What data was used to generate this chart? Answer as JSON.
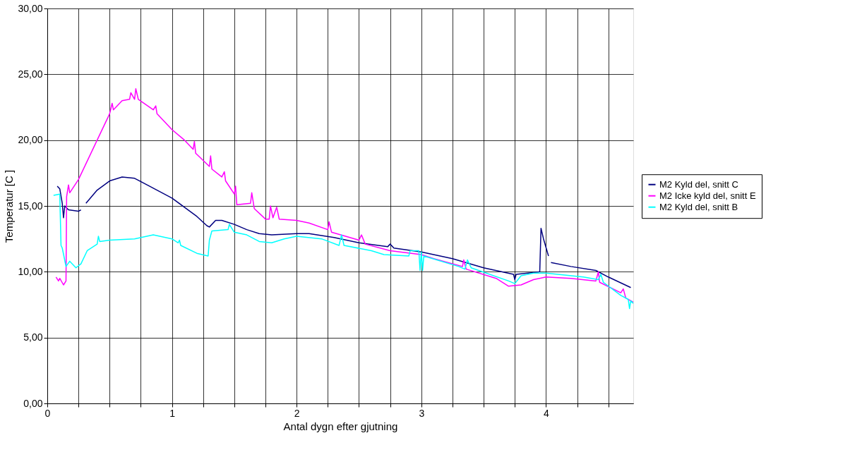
{
  "chart_data": {
    "type": "line",
    "xlabel": "Antal dygn efter gjutning",
    "ylabel": "Temperatur [C ]",
    "xlim": [
      0,
      4.7
    ],
    "ylim": [
      0,
      30
    ],
    "xticks": [
      0,
      {
        "value": 0.25,
        "label": null
      },
      {
        "value": 0.5,
        "label": null
      },
      {
        "value": 0.75,
        "label": null
      },
      1,
      {
        "value": 1.25,
        "label": null
      },
      {
        "value": 1.5,
        "label": null
      },
      {
        "value": 1.75,
        "label": null
      },
      2,
      {
        "value": 2.25,
        "label": null
      },
      {
        "value": 2.5,
        "label": null
      },
      {
        "value": 2.75,
        "label": null
      },
      3,
      {
        "value": 3.25,
        "label": null
      },
      {
        "value": 3.5,
        "label": null
      },
      {
        "value": 3.75,
        "label": null
      },
      4,
      {
        "value": 4.25,
        "label": null
      },
      {
        "value": 4.5,
        "label": null
      }
    ],
    "yticks": [
      {
        "value": 0,
        "label": "0,00"
      },
      {
        "value": 5,
        "label": "5,00"
      },
      {
        "value": 10,
        "label": "10,00"
      },
      {
        "value": 15,
        "label": "15,00"
      },
      {
        "value": 20,
        "label": "20,00"
      },
      {
        "value": 25,
        "label": "25,00"
      },
      {
        "value": 30,
        "label": "30,00"
      }
    ],
    "grid": true,
    "legend": "right",
    "marker": "none",
    "line_style": "solid",
    "series": [
      {
        "name": "M2 Kyld del, snitt C",
        "color": "#000080",
        "x": [
          0.08,
          0.1,
          0.12,
          0.13,
          0.14,
          0.17,
          0.25,
          0.27,
          0.29,
          0.31,
          0.4,
          0.5,
          0.6,
          0.7,
          0.8,
          1.0,
          1.1,
          1.2,
          1.28,
          1.3,
          1.35,
          1.4,
          1.5,
          1.6,
          1.7,
          1.8,
          2.0,
          2.1,
          2.3,
          2.5,
          2.73,
          2.75,
          2.78,
          3.0,
          3.25,
          3.5,
          3.74,
          3.75,
          3.76,
          3.95,
          3.96,
          3.98,
          4.02,
          4.03,
          4.04,
          4.2,
          4.4,
          4.5,
          4.68
        ],
        "values": [
          16.5,
          16.3,
          15.2,
          14.1,
          15.0,
          14.7,
          14.6,
          14.7,
          null,
          15.2,
          16.2,
          16.9,
          17.2,
          17.1,
          16.6,
          15.6,
          14.9,
          14.2,
          13.5,
          13.4,
          13.9,
          13.9,
          13.6,
          13.2,
          12.9,
          12.8,
          12.9,
          12.9,
          12.6,
          12.2,
          11.9,
          12.1,
          11.8,
          11.5,
          11.0,
          10.3,
          9.8,
          9.4,
          9.8,
          10.0,
          13.3,
          12.5,
          11.2,
          null,
          10.7,
          10.4,
          10.1,
          9.6,
          8.8
        ]
      },
      {
        "name": "M2 Icke kyld del, snitt E",
        "color": "#ff00ff",
        "x": [
          0.07,
          0.09,
          0.1,
          0.13,
          0.15,
          0.155,
          0.17,
          0.18,
          0.25,
          0.4,
          0.5,
          0.52,
          0.53,
          0.6,
          0.66,
          0.67,
          0.7,
          0.71,
          0.73,
          0.85,
          0.87,
          0.88,
          1.0,
          1.1,
          1.17,
          1.18,
          1.19,
          1.3,
          1.31,
          1.32,
          1.4,
          1.42,
          1.43,
          1.5,
          1.51,
          1.52,
          1.63,
          1.64,
          1.66,
          1.75,
          1.78,
          1.79,
          1.81,
          1.84,
          1.86,
          2.0,
          2.1,
          2.25,
          2.26,
          2.28,
          2.5,
          2.52,
          2.55,
          2.75,
          3.0,
          3.1,
          3.33,
          3.34,
          3.36,
          3.6,
          3.7,
          3.8,
          3.9,
          4.0,
          4.2,
          4.4,
          4.42,
          4.43,
          4.6,
          4.62,
          4.64,
          4.7
        ],
        "values": [
          9.6,
          9.3,
          9.5,
          9.0,
          9.3,
          15.7,
          16.6,
          16.0,
          17.0,
          20.0,
          22.0,
          22.8,
          22.3,
          23.0,
          23.1,
          23.6,
          23.1,
          23.9,
          23.1,
          22.3,
          22.6,
          22.0,
          20.8,
          20.0,
          19.3,
          19.9,
          19.0,
          18.0,
          18.8,
          17.8,
          17.2,
          17.6,
          16.9,
          15.9,
          16.5,
          15.1,
          15.2,
          16.0,
          14.8,
          14.0,
          14.0,
          15.0,
          14.1,
          14.9,
          14.0,
          13.9,
          13.7,
          13.2,
          13.8,
          13.0,
          12.4,
          12.8,
          12.1,
          11.6,
          11.3,
          11.0,
          10.4,
          10.9,
          10.2,
          9.5,
          8.9,
          9.0,
          9.4,
          9.6,
          9.5,
          9.3,
          10.0,
          9.2,
          8.4,
          8.7,
          8.0,
          7.7
        ]
      },
      {
        "name": "M2 Kyld del, snitt B",
        "color": "#00ffff",
        "x": [
          0.05,
          0.1,
          0.11,
          0.12,
          0.15,
          0.18,
          0.23,
          0.27,
          0.32,
          0.4,
          0.41,
          0.42,
          0.5,
          0.7,
          0.85,
          1.0,
          1.05,
          1.06,
          1.07,
          1.2,
          1.29,
          1.3,
          1.32,
          1.45,
          1.46,
          1.5,
          1.6,
          1.7,
          1.8,
          1.9,
          2.0,
          2.2,
          2.34,
          2.36,
          2.38,
          2.6,
          2.7,
          2.9,
          2.91,
          2.98,
          2.99,
          3.0,
          3.01,
          3.02,
          3.3,
          3.35,
          3.37,
          3.4,
          3.7,
          3.75,
          3.8,
          3.9,
          4.0,
          4.3,
          4.42,
          4.44,
          4.46,
          4.6,
          4.66,
          4.67,
          4.68,
          4.7
        ],
        "values": [
          15.8,
          15.9,
          12.0,
          11.8,
          10.4,
          10.8,
          10.3,
          10.6,
          11.6,
          12.1,
          12.7,
          12.3,
          12.4,
          12.5,
          12.8,
          12.5,
          12.2,
          12.4,
          12.0,
          11.4,
          11.2,
          12.4,
          13.1,
          13.2,
          13.6,
          13.0,
          12.8,
          12.3,
          12.2,
          12.5,
          12.7,
          12.5,
          12.0,
          12.8,
          12.0,
          11.6,
          11.3,
          11.2,
          11.6,
          11.6,
          10.1,
          11.5,
          10.1,
          11.2,
          10.4,
          10.2,
          10.9,
          10.3,
          9.3,
          9.1,
          9.7,
          9.9,
          9.9,
          9.6,
          9.4,
          9.8,
          9.2,
          8.2,
          7.9,
          7.2,
          7.8,
          7.6
        ]
      }
    ]
  }
}
